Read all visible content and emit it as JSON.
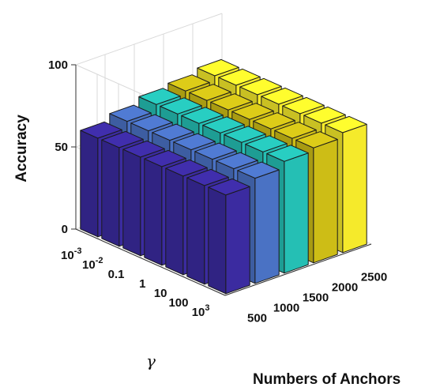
{
  "chart_data": {
    "type": "bar3d",
    "title": "",
    "xlabel": "Numbers of Anchors",
    "ylabel": "γ",
    "zlabel": "Accuracy",
    "anchors": [
      "500",
      "1000",
      "1500",
      "2000",
      "2500"
    ],
    "gamma": [
      {
        "base": "10",
        "exp": "-3"
      },
      {
        "base": "10",
        "exp": "-2"
      },
      {
        "base": "0.1",
        "exp": ""
      },
      {
        "base": "1",
        "exp": ""
      },
      {
        "base": "10",
        "exp": ""
      },
      {
        "base": "100",
        "exp": ""
      },
      {
        "base": "10",
        "exp": "3"
      }
    ],
    "zlim": [
      0,
      100
    ],
    "zticks": [
      "0",
      "50",
      "100"
    ],
    "colors": [
      "#3b2ba0",
      "#4a72c4",
      "#25bfb4",
      "#cdbd16",
      "#f5ea2b"
    ],
    "values": [
      [
        60,
        60,
        60,
        60,
        60,
        60,
        60
      ],
      [
        64,
        64,
        64,
        64,
        64,
        64,
        64
      ],
      [
        68,
        68,
        68,
        68,
        68,
        68,
        68
      ],
      [
        70,
        70,
        70,
        70,
        70,
        70,
        70
      ],
      [
        73,
        73,
        73,
        73,
        73,
        73,
        73
      ]
    ],
    "grid": true
  }
}
